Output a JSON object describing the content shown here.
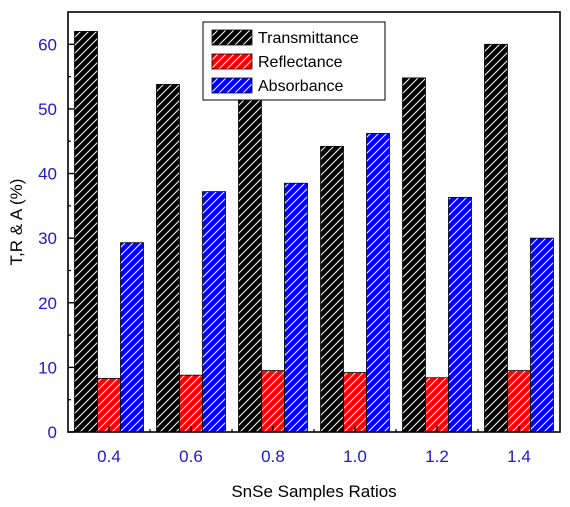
{
  "chart_data": {
    "type": "bar",
    "title": "",
    "xlabel": "SnSe Samples Ratios",
    "ylabel": "T,R & A (%)",
    "categories": [
      "0.4",
      "0.6",
      "0.8",
      "1.0",
      "1.2",
      "1.4"
    ],
    "ylim": [
      0,
      65
    ],
    "yticks": [
      "0",
      "10",
      "20",
      "30",
      "40",
      "50",
      "60"
    ],
    "tick_label_color": "#1a1acc",
    "grid": false,
    "legend_position": "top-center",
    "bar_pattern": "diagonal-hatch",
    "series": [
      {
        "name": "Transmittance",
        "color": "#000000",
        "values": [
          62,
          53.8,
          51.5,
          44.2,
          54.8,
          60
        ]
      },
      {
        "name": "Reflectance",
        "color": "#ff0000",
        "values": [
          8.3,
          8.8,
          9.5,
          9.2,
          8.4,
          9.5
        ]
      },
      {
        "name": "Absorbance",
        "color": "#0000ff",
        "values": [
          29.3,
          37.2,
          38.5,
          46.2,
          36.3,
          30
        ]
      }
    ]
  }
}
